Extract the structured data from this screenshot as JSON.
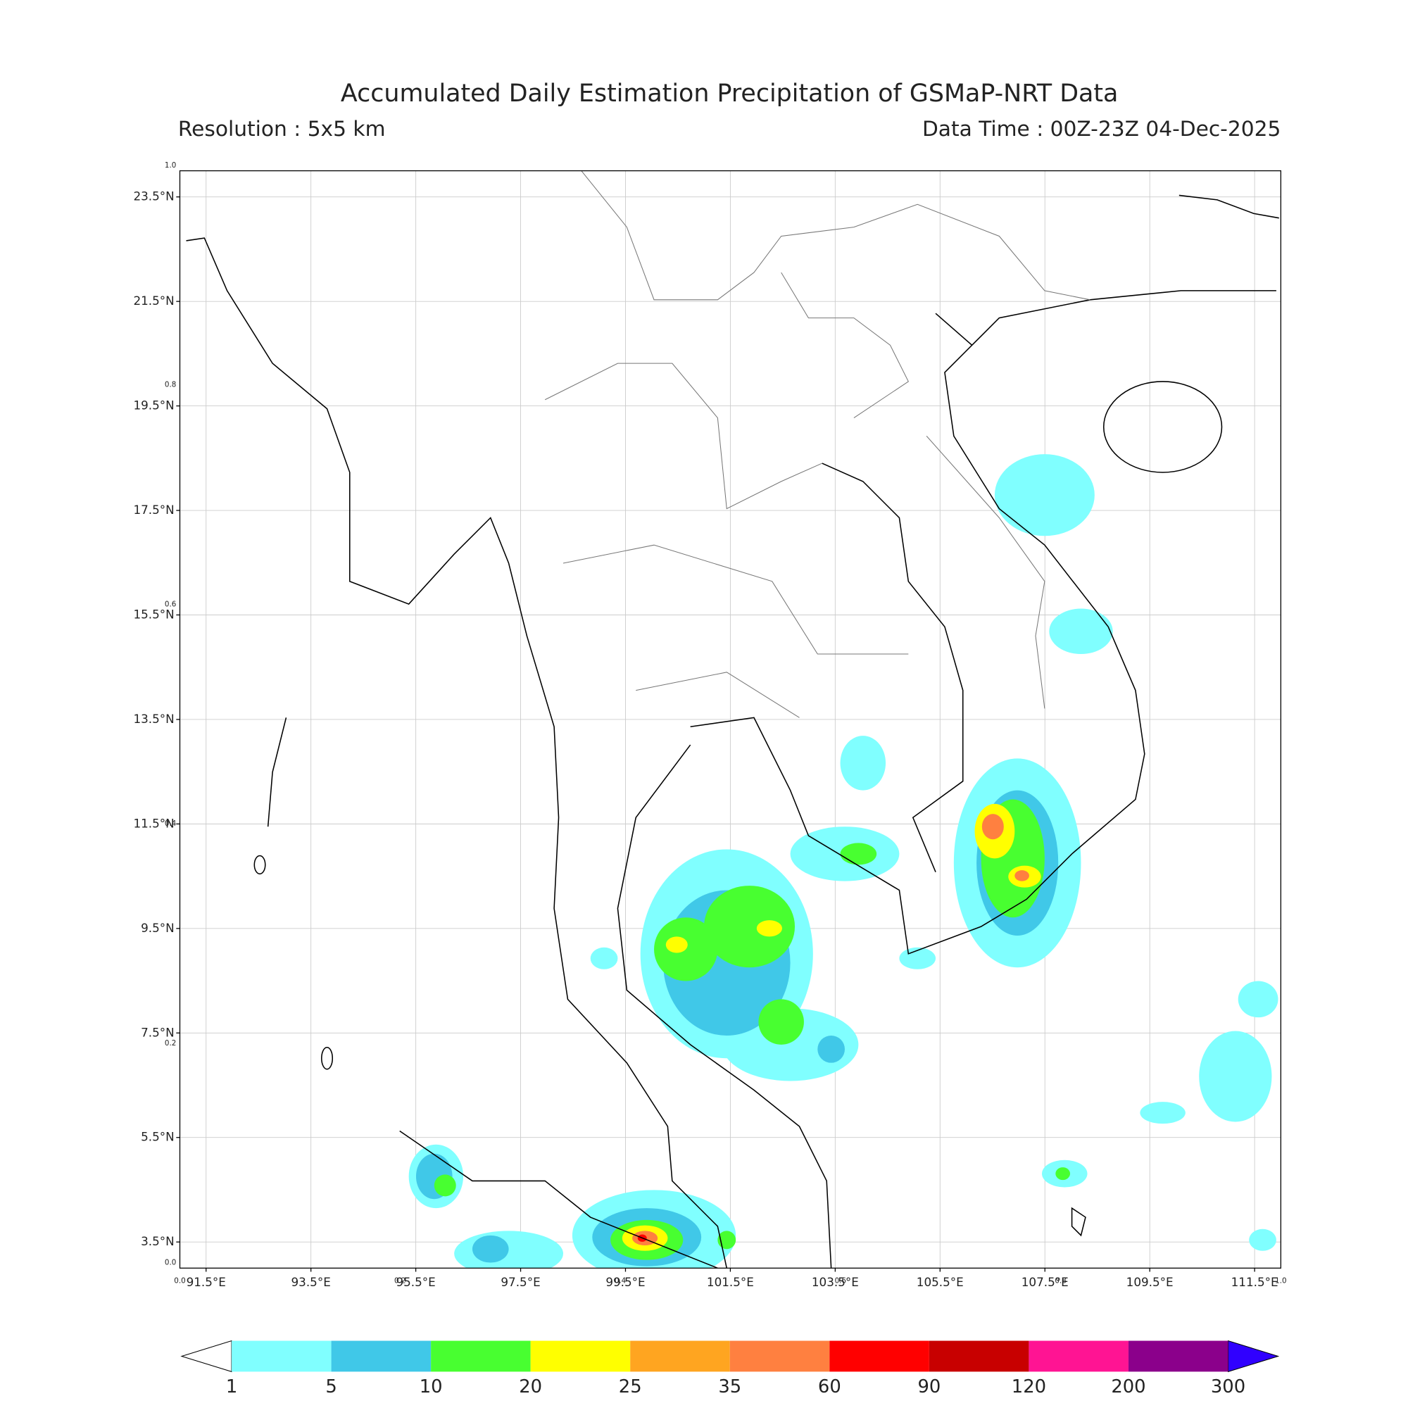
{
  "header": {
    "title": "Accumulated Daily Estimation Precipitation of GSMaP-NRT Data",
    "resolution": "Resolution : 5x5 km",
    "data_time": "Data Time : 00Z-23Z 04-Dec-2025"
  },
  "map": {
    "lon_range": [
      91,
      112
    ],
    "lat_range": [
      3,
      24
    ],
    "lon_ticks": [
      {
        "value": 91.5,
        "label": "91.5°E"
      },
      {
        "value": 93.5,
        "label": "93.5°E"
      },
      {
        "value": 95.5,
        "label": "95.5°E"
      },
      {
        "value": 97.5,
        "label": "97.5°E"
      },
      {
        "value": 99.5,
        "label": "99.5°E"
      },
      {
        "value": 101.5,
        "label": "101.5°E"
      },
      {
        "value": 103.5,
        "label": "103.5°E"
      },
      {
        "value": 105.5,
        "label": "105.5°E"
      },
      {
        "value": 107.5,
        "label": "107.5°E"
      },
      {
        "value": 109.5,
        "label": "109.5°E"
      },
      {
        "value": 111.5,
        "label": "111.5°E"
      }
    ],
    "lat_ticks": [
      {
        "value": 3.5,
        "label": "3.5°N"
      },
      {
        "value": 5.5,
        "label": "5.5°N"
      },
      {
        "value": 7.5,
        "label": "7.5°N"
      },
      {
        "value": 9.5,
        "label": "9.5°N"
      },
      {
        "value": 11.5,
        "label": "11.5°N"
      },
      {
        "value": 13.5,
        "label": "13.5°N"
      },
      {
        "value": 15.5,
        "label": "15.5°N"
      },
      {
        "value": 17.5,
        "label": "17.5°N"
      },
      {
        "value": 19.5,
        "label": "19.5°N"
      },
      {
        "value": 21.5,
        "label": "21.5°N"
      },
      {
        "value": 23.5,
        "label": "23.5°N"
      }
    ],
    "frame_ticks": [
      {
        "value": 0,
        "label": "0.0"
      },
      {
        "value": 0.2,
        "label": "0.2"
      },
      {
        "value": 0.4,
        "label": "0.4"
      },
      {
        "value": 0.6,
        "label": "0.6"
      },
      {
        "value": 0.8,
        "label": "0.8"
      },
      {
        "value": 1,
        "label": "1.0"
      }
    ],
    "grid": true
  },
  "colorbar": {
    "levels": [
      1,
      5,
      10,
      20,
      25,
      35,
      60,
      90,
      120,
      200,
      300
    ],
    "colors": [
      "#80ffff",
      "#40c8e8",
      "#48ff30",
      "#ffff00",
      "#ffa520",
      "#ff8040",
      "#ff0000",
      "#c80000",
      "#ff1493",
      "#8b008b"
    ],
    "under_color": "#ffffff",
    "over_color": "#3000ff"
  }
}
